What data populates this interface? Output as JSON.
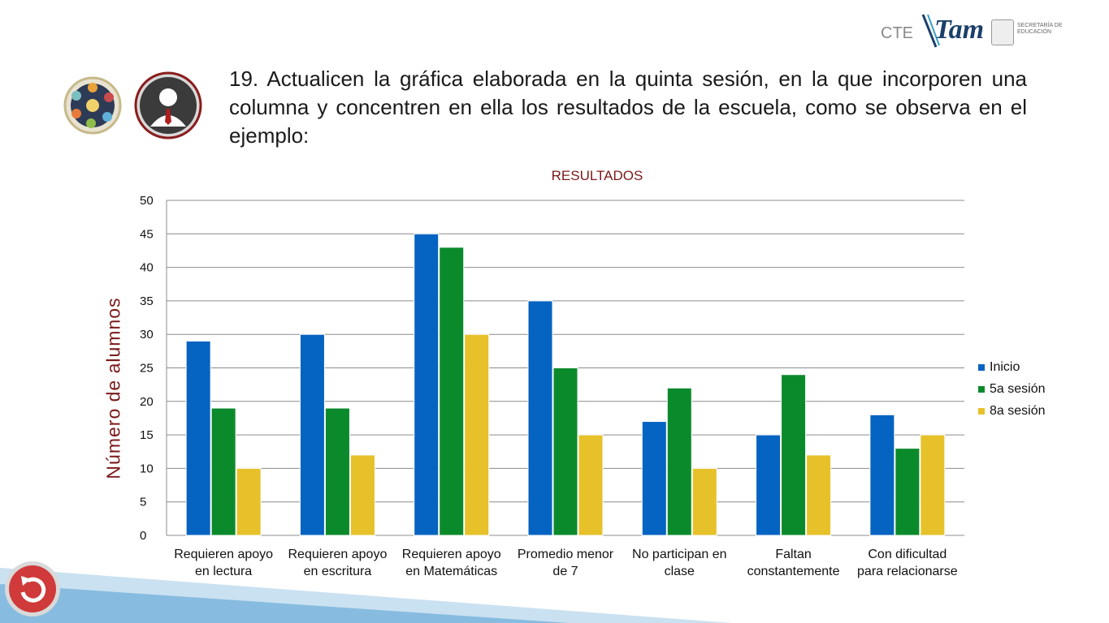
{
  "header": {
    "cte_label": "CTE",
    "logo_word": "Tam",
    "secretaria": "SECRETARÍA DE EDUCACIÓN"
  },
  "instruction": "19. Actualicen la gráfica elaborada en la quinta sesión, en la que incorporen una columna y concentren en ella los resultados de la escuela, como se observa en  el ejemplo:",
  "colors": {
    "inicio": "#0563c1",
    "sesion5": "#0b8a2c",
    "sesion8": "#e6c12a",
    "title": "#7b1a1a"
  },
  "icons": [
    "group-circle-icon",
    "person-tie-icon",
    "back-arrow-icon"
  ],
  "chart_data": {
    "type": "bar",
    "title": "RESULTADOS",
    "xlabel": "",
    "ylabel": "Número de alumnos",
    "ylim": [
      0,
      50
    ],
    "yticks": [
      0,
      5,
      10,
      15,
      20,
      25,
      30,
      35,
      40,
      45,
      50
    ],
    "grid": true,
    "legend_position": "right",
    "categories": [
      "Requieren apoyo en lectura",
      "Requieren apoyo en escritura",
      "Requieren apoyo en Matemáticas",
      "Promedio menor de 7",
      "No participan en clase",
      "Faltan constantemente",
      "Con dificultad para relacionarse"
    ],
    "category_lines": [
      [
        "Requieren apoyo",
        "en lectura"
      ],
      [
        "Requieren apoyo",
        "en escritura"
      ],
      [
        "Requieren apoyo",
        "en Matemáticas"
      ],
      [
        "Promedio menor",
        "de 7"
      ],
      [
        "No participan en",
        "clase"
      ],
      [
        "Faltan",
        "constantemente"
      ],
      [
        "Con dificultad",
        "para relacionarse"
      ]
    ],
    "series": [
      {
        "name": "Inicio",
        "values": [
          29,
          30,
          45,
          35,
          17,
          15,
          18
        ]
      },
      {
        "name": "5a sesión",
        "values": [
          19,
          19,
          43,
          25,
          22,
          24,
          13
        ]
      },
      {
        "name": "8a sesión",
        "values": [
          10,
          12,
          30,
          15,
          10,
          12,
          15
        ]
      }
    ]
  }
}
